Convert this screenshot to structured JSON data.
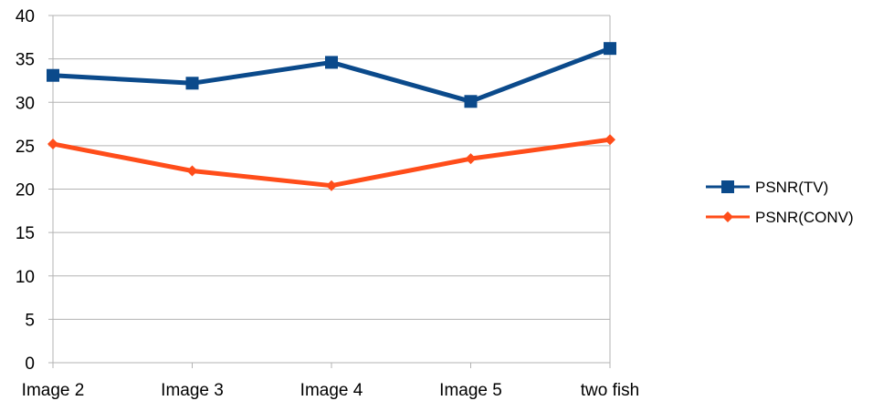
{
  "chart_data": {
    "type": "line",
    "categories": [
      "Image 2",
      "Image 3",
      "Image 4",
      "Image 5",
      "two fish"
    ],
    "series": [
      {
        "name": "PSNR(TV)",
        "values": [
          33.1,
          32.2,
          34.6,
          30.1,
          36.2
        ],
        "color": "#0b4a8b",
        "marker": "square"
      },
      {
        "name": "PSNR(CONV)",
        "values": [
          25.2,
          22.1,
          20.4,
          23.5,
          25.7
        ],
        "color": "#ff4d1a",
        "marker": "diamond"
      }
    ],
    "ylim": [
      0,
      40
    ],
    "yticks": [
      "0",
      "5",
      "10",
      "15",
      "20",
      "25",
      "30",
      "35",
      "40"
    ],
    "grid": true,
    "legend_position": "right"
  }
}
